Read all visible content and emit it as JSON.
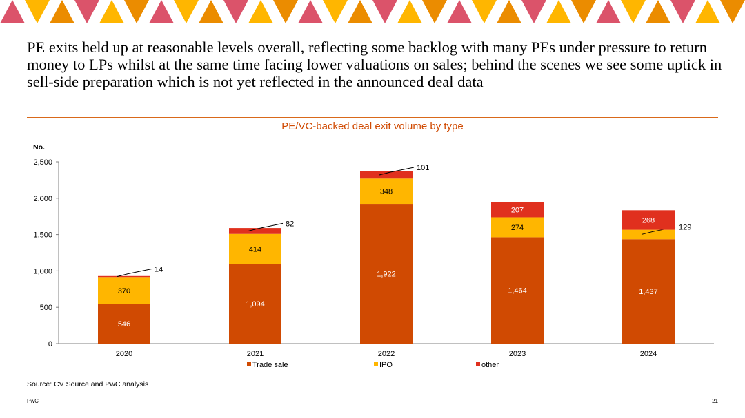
{
  "page": {
    "headline": "PE exits held up at reasonable levels overall, reflecting some backlog with many PEs under pressure to return money to LPs whilst at the same time facing lower valuations on sales; behind the scenes we see some uptick in sell-side preparation which is not yet reflected in the announced deal data",
    "source": "Source: CV Source and PwC analysis",
    "brand": "PwC",
    "page_number": "21",
    "banner_colors": [
      "#db536a",
      "#ffb600",
      "#eb8c00"
    ]
  },
  "chart_data": {
    "type": "bar",
    "stacked": true,
    "title": "PE/VC-backed deal exit volume by type",
    "ylabel": "No.",
    "ylim": [
      0,
      2500
    ],
    "yticks": [
      "0",
      "500",
      "1,000",
      "1,500",
      "2,000",
      "2,500"
    ],
    "ytick_values": [
      0,
      500,
      1000,
      1500,
      2000,
      2500
    ],
    "categories": [
      "2020",
      "2021",
      "2022",
      "2023",
      "2024"
    ],
    "series": [
      {
        "name": "Trade sale",
        "color": "#d04a02",
        "values": [
          546,
          1094,
          1922,
          1464,
          1437
        ],
        "labels": [
          "546",
          "1,094",
          "1,922",
          "1,464",
          "1,437"
        ]
      },
      {
        "name": "IPO",
        "color": "#ffb600",
        "values": [
          370,
          414,
          348,
          274,
          129
        ],
        "labels": [
          "370",
          "414",
          "348",
          "274",
          "129"
        ]
      },
      {
        "name": "other",
        "color": "#e0301e",
        "values": [
          14,
          82,
          101,
          207,
          268
        ],
        "labels": [
          "14",
          "82",
          "101",
          "207",
          "268"
        ]
      }
    ],
    "grid": false,
    "legend": "bottom"
  }
}
